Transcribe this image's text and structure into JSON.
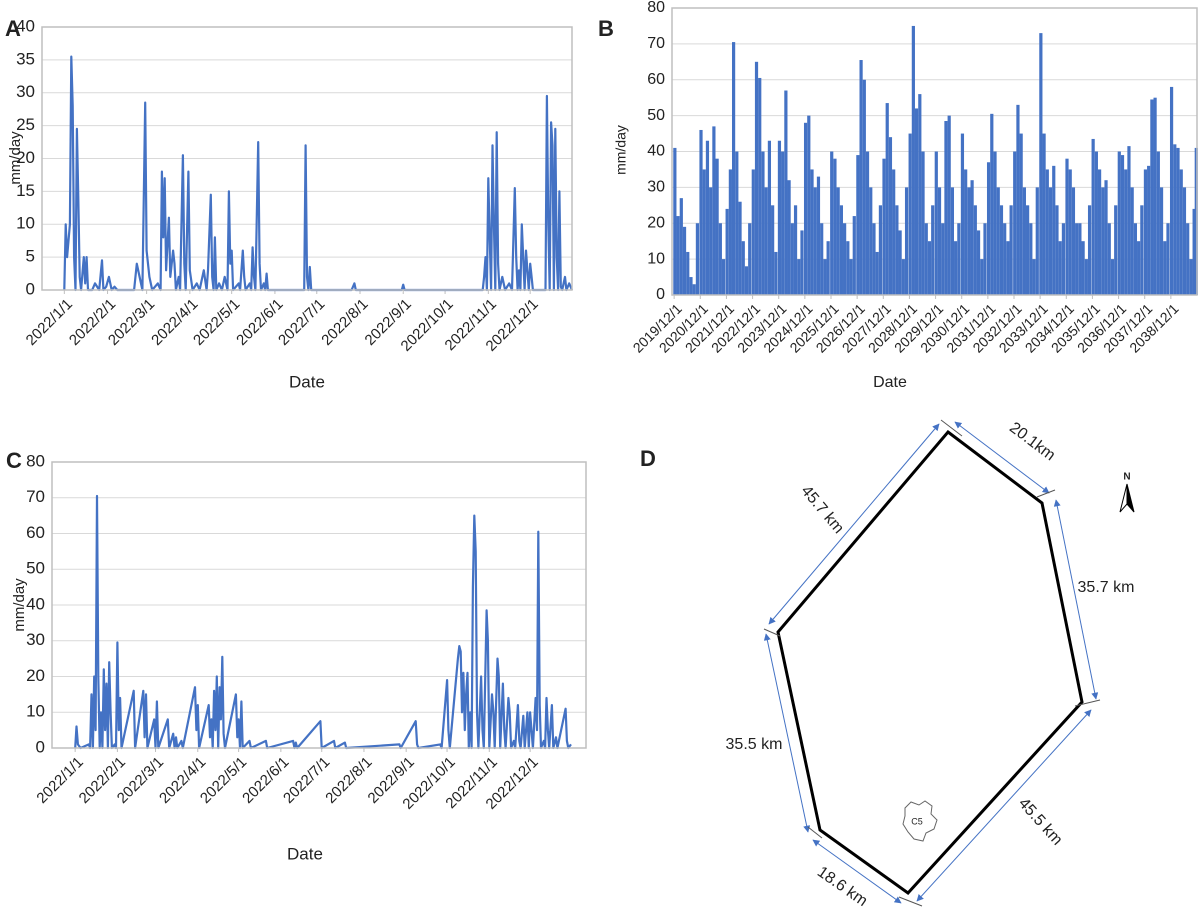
{
  "chart_data": [
    {
      "type": "line",
      "panel": "A",
      "xlabel": "Date",
      "ylabel": "mm/day",
      "grid": true,
      "xlim": [
        -16,
        364
      ],
      "ylim": [
        0,
        40
      ],
      "yticks": [
        0,
        5,
        10,
        15,
        20,
        25,
        30,
        35,
        40
      ],
      "xticks": [
        {
          "value": 0,
          "label": "2022/1/1"
        },
        {
          "value": 31,
          "label": "2022/2/1"
        },
        {
          "value": 59,
          "label": "2022/3/1"
        },
        {
          "value": 90,
          "label": "2022/4/1"
        },
        {
          "value": 120,
          "label": "2022/5/1"
        },
        {
          "value": 151,
          "label": "2022/6/1"
        },
        {
          "value": 181,
          "label": "2022/7/1"
        },
        {
          "value": 212,
          "label": "2022/8/1"
        },
        {
          "value": 243,
          "label": "2022/9/1"
        },
        {
          "value": 273,
          "label": "2022/10/1"
        },
        {
          "value": 304,
          "label": "2022/11/1"
        },
        {
          "value": 334,
          "label": "2022/12/1"
        }
      ],
      "color": "#4472c4",
      "x": [
        0,
        1,
        2,
        4,
        5,
        6,
        7,
        8,
        9,
        10,
        11,
        12,
        14,
        15,
        16,
        17,
        20,
        22,
        25,
        27,
        28,
        30,
        32,
        34,
        36,
        38,
        50,
        52,
        54,
        56,
        58,
        59,
        61,
        63,
        67,
        69,
        70,
        71,
        72,
        73,
        75,
        76,
        78,
        79,
        80,
        82,
        83,
        85,
        86,
        87,
        89,
        90,
        92,
        95,
        97,
        99,
        100,
        102,
        103,
        105,
        106,
        107,
        108,
        109,
        111,
        113,
        115,
        117,
        118,
        119,
        120,
        121,
        125,
        126,
        128,
        129,
        130,
        133,
        134,
        135,
        136,
        137,
        139,
        140,
        141,
        143,
        144,
        145,
        146,
        172,
        173,
        174,
        175,
        176,
        177,
        206,
        208,
        209,
        242,
        243,
        244,
        300,
        301,
        302,
        303,
        304,
        305,
        306,
        307,
        308,
        309,
        310,
        311,
        312,
        314,
        316,
        319,
        321,
        323,
        324,
        325,
        326,
        327,
        328,
        329,
        330,
        331,
        332,
        333,
        334,
        335,
        336,
        345,
        346,
        347,
        348,
        349,
        350,
        351,
        352,
        353,
        354,
        355,
        356,
        357,
        359,
        360,
        362,
        364
      ],
      "values": [
        0,
        10,
        5,
        10,
        35.5,
        28,
        5,
        0,
        24.5,
        14,
        2,
        0,
        5,
        1,
        5,
        0,
        0,
        1,
        0,
        4.5,
        0,
        0.5,
        2,
        0,
        0.5,
        0,
        0,
        4,
        2,
        0,
        28.5,
        6,
        2,
        0,
        1,
        0,
        18,
        8,
        17,
        3,
        11,
        2,
        6,
        4,
        0,
        2,
        0,
        20.5,
        4,
        0,
        18,
        3,
        0,
        1,
        0,
        2,
        3,
        0,
        3,
        14.5,
        2,
        0,
        8,
        0,
        1,
        0,
        2,
        0,
        15,
        4,
        6,
        0,
        1,
        0,
        6,
        2,
        0,
        1,
        0,
        6.5,
        2,
        0,
        22.5,
        4,
        0,
        1,
        0,
        2.5,
        0,
        0,
        22,
        2,
        0,
        3.5,
        0,
        0,
        1,
        0,
        0,
        0.8,
        0,
        0,
        2,
        5,
        0,
        17,
        8,
        0,
        22,
        10,
        0,
        24,
        4,
        0,
        2,
        0,
        1,
        0,
        15.5,
        5,
        0,
        3,
        0,
        10,
        5,
        0,
        6,
        3,
        0,
        4,
        2,
        0,
        0,
        29.5,
        10,
        0,
        25.5,
        22,
        0,
        24.5,
        5,
        0,
        15,
        0.5,
        0,
        2,
        0,
        1,
        0
      ]
    },
    {
      "type": "bar",
      "panel": "B",
      "xlabel": "Date",
      "ylabel": "mm/day",
      "grid": true,
      "xlim": [
        -30,
        7300
      ],
      "ylim": [
        0,
        80
      ],
      "yticks": [
        0,
        10,
        20,
        30,
        40,
        50,
        60,
        70,
        80
      ],
      "xticks": [
        {
          "value": 0,
          "label": "2019/12/1"
        },
        {
          "value": 365,
          "label": "2020/12/1"
        },
        {
          "value": 730,
          "label": "2021/12/1"
        },
        {
          "value": 1095,
          "label": "2022/12/1"
        },
        {
          "value": 1460,
          "label": "2023/12/1"
        },
        {
          "value": 1825,
          "label": "2024/12/1"
        },
        {
          "value": 2190,
          "label": "2025/12/1"
        },
        {
          "value": 2555,
          "label": "2026/12/1"
        },
        {
          "value": 2920,
          "label": "2027/12/1"
        },
        {
          "value": 3285,
          "label": "2028/12/1"
        },
        {
          "value": 3650,
          "label": "2029/12/1"
        },
        {
          "value": 4015,
          "label": "2030/12/1"
        },
        {
          "value": 4380,
          "label": "2031/12/1"
        },
        {
          "value": 4745,
          "label": "2032/12/1"
        },
        {
          "value": 5110,
          "label": "2033/12/1"
        },
        {
          "value": 5475,
          "label": "2034/12/1"
        },
        {
          "value": 5840,
          "label": "2035/12/1"
        },
        {
          "value": 6205,
          "label": "2036/12/1"
        },
        {
          "value": 6570,
          "label": "2037/12/1"
        },
        {
          "value": 6935,
          "label": "2038/12/1"
        }
      ],
      "color": "#4472c4",
      "x": [
        10,
        55,
        100,
        145,
        190,
        235,
        280,
        325,
        375,
        420,
        465,
        510,
        555,
        600,
        645,
        690,
        740,
        785,
        830,
        875,
        920,
        965,
        1010,
        1055,
        1105,
        1150,
        1195,
        1240,
        1285,
        1330,
        1375,
        1420,
        1470,
        1515,
        1560,
        1605,
        1650,
        1695,
        1740,
        1785,
        1835,
        1880,
        1925,
        1970,
        2015,
        2060,
        2105,
        2150,
        2200,
        2245,
        2290,
        2335,
        2380,
        2425,
        2470,
        2515,
        2565,
        2610,
        2655,
        2700,
        2745,
        2790,
        2835,
        2880,
        2930,
        2975,
        3020,
        3065,
        3110,
        3155,
        3200,
        3245,
        3295,
        3340,
        3385,
        3430,
        3475,
        3520,
        3565,
        3610,
        3660,
        3705,
        3750,
        3795,
        3840,
        3885,
        3930,
        3975,
        4025,
        4070,
        4115,
        4160,
        4205,
        4250,
        4295,
        4340,
        4390,
        4435,
        4480,
        4525,
        4570,
        4615,
        4660,
        4705,
        4755,
        4800,
        4845,
        4890,
        4935,
        4980,
        5025,
        5070,
        5120,
        5165,
        5210,
        5255,
        5300,
        5345,
        5390,
        5435,
        5485,
        5530,
        5575,
        5620,
        5665,
        5710,
        5755,
        5800,
        5850,
        5895,
        5940,
        5985,
        6030,
        6075,
        6120,
        6165,
        6215,
        6260,
        6305,
        6350,
        6395,
        6440,
        6485,
        6530,
        6580,
        6625,
        6670,
        6715,
        6760,
        6805,
        6850,
        6895,
        6945,
        6990,
        7035,
        7080,
        7125,
        7170,
        7215,
        7260,
        7290
      ],
      "values": [
        41,
        22,
        27,
        19,
        12,
        5,
        3,
        20,
        46,
        35,
        43,
        30,
        47,
        38,
        20,
        10,
        24,
        35,
        70.5,
        40,
        26,
        15,
        8,
        20,
        35,
        65,
        60.5,
        40,
        30,
        43,
        25,
        12,
        43,
        40,
        57,
        32,
        20,
        25,
        10,
        18,
        48,
        50,
        35,
        30,
        33,
        20,
        10,
        15,
        40,
        38,
        30,
        25,
        20,
        15,
        10,
        22,
        39,
        65.5,
        60,
        40,
        30,
        20,
        12,
        25,
        38,
        53.5,
        44,
        35,
        25,
        18,
        10,
        30,
        45,
        75,
        52,
        56,
        40,
        20,
        15,
        25,
        40,
        30,
        20,
        48.5,
        50,
        30,
        15,
        20,
        45,
        35,
        30,
        32,
        25,
        18,
        10,
        20,
        37,
        50.5,
        40,
        30,
        25,
        20,
        15,
        25,
        40,
        53,
        45,
        30,
        25,
        20,
        10,
        30,
        73,
        45,
        35,
        30,
        36,
        25,
        15,
        20,
        38,
        35,
        30,
        20,
        20,
        15,
        10,
        25,
        43.5,
        40,
        35,
        30,
        32,
        20,
        10,
        25,
        40,
        39,
        35,
        41.5,
        30,
        20,
        15,
        25,
        35,
        36,
        54.5,
        55,
        40,
        30,
        15,
        20,
        58,
        42,
        41,
        35,
        30,
        20,
        10,
        24,
        41
      ]
    },
    {
      "type": "line",
      "panel": "C",
      "xlabel": "Date",
      "ylabel": "mm/day",
      "grid": true,
      "xlim": [
        -17,
        375
      ],
      "ylim": [
        0,
        80
      ],
      "yticks": [
        0,
        10,
        20,
        30,
        40,
        50,
        60,
        70,
        80
      ],
      "xticks": [
        {
          "value": 0,
          "label": "2022/1/1"
        },
        {
          "value": 31,
          "label": "2022/2/1"
        },
        {
          "value": 59,
          "label": "2022/3/1"
        },
        {
          "value": 90,
          "label": "2022/4/1"
        },
        {
          "value": 120,
          "label": "2022/5/1"
        },
        {
          "value": 151,
          "label": "2022/6/1"
        },
        {
          "value": 181,
          "label": "2022/7/1"
        },
        {
          "value": 212,
          "label": "2022/8/1"
        },
        {
          "value": 243,
          "label": "2022/9/1"
        },
        {
          "value": 273,
          "label": "2022/10/1"
        },
        {
          "value": 304,
          "label": "2022/11/1"
        },
        {
          "value": 334,
          "label": "2022/12/1"
        }
      ],
      "color": "#4472c4",
      "x": [
        0,
        1,
        2,
        4,
        10,
        11,
        12,
        13,
        14,
        15,
        16,
        17,
        18,
        19,
        20,
        21,
        22,
        23,
        24,
        25,
        26,
        27,
        29,
        30,
        31,
        32,
        33,
        34,
        43,
        44,
        50,
        51,
        52,
        53,
        58,
        59,
        60,
        61,
        68,
        69,
        72,
        73,
        74,
        75,
        78,
        79,
        88,
        89,
        90,
        91,
        98,
        99,
        100,
        101,
        102,
        103,
        104,
        105,
        106,
        107,
        108,
        109,
        110,
        118,
        119,
        120,
        121,
        122,
        123,
        128,
        129,
        140,
        141,
        160,
        161,
        162,
        163,
        180,
        181,
        190,
        191,
        198,
        199,
        238,
        239,
        250,
        251,
        252,
        268,
        269,
        273,
        274,
        275,
        281,
        282,
        283,
        284,
        285,
        286,
        287,
        288,
        289,
        290,
        291,
        292,
        293,
        294,
        295,
        296,
        298,
        299,
        300,
        302,
        303,
        304,
        306,
        307,
        308,
        310,
        311,
        312,
        314,
        315,
        316,
        318,
        319,
        320,
        322,
        323,
        325,
        326,
        327,
        329,
        330,
        332,
        333,
        334,
        335,
        336,
        338,
        339,
        340,
        341,
        342,
        344,
        345,
        346,
        347,
        348,
        350,
        351,
        353,
        354,
        360,
        361,
        362,
        364
      ],
      "values": [
        0,
        6,
        1,
        0,
        1,
        0,
        15,
        0,
        20,
        5,
        70.5,
        20,
        0,
        10,
        0,
        22,
        5,
        18,
        0,
        24,
        10,
        0,
        1,
        0,
        29.5,
        5,
        14,
        0,
        16,
        0,
        16,
        3,
        15,
        0,
        8,
        0,
        13,
        0,
        8,
        0,
        4,
        0,
        3,
        0,
        2,
        0,
        17,
        5,
        12,
        0,
        12,
        3,
        8,
        0,
        16,
        5,
        20,
        0,
        17,
        8,
        25.5,
        4,
        0,
        15,
        3,
        8,
        0,
        13,
        0,
        2,
        0,
        2,
        0,
        2,
        0,
        1.5,
        0,
        7.5,
        0,
        2,
        0,
        1.5,
        0,
        1,
        0,
        7.5,
        1,
        0,
        1,
        0,
        19,
        5,
        0,
        25,
        28.5,
        27,
        10,
        21,
        5,
        15,
        21,
        0,
        10,
        0,
        45,
        65,
        55,
        10,
        0,
        20,
        5,
        0,
        38.5,
        30,
        0,
        15,
        10,
        0,
        25,
        20,
        0,
        18,
        5,
        0,
        14,
        10,
        0,
        2,
        0,
        12,
        2,
        0,
        9,
        0,
        10,
        0,
        10,
        5,
        0,
        14,
        5,
        60.5,
        12,
        0,
        2,
        0,
        14,
        5,
        0,
        12,
        0,
        3,
        0,
        11,
        2,
        0,
        1
      ]
    }
  ],
  "diagram": {
    "panel": "D",
    "edges": [
      "20.1km",
      "35.7 km",
      "45.5 km",
      "18.6 km",
      "35.5 km",
      "45.7 km"
    ],
    "north": "N",
    "site": "C5"
  }
}
